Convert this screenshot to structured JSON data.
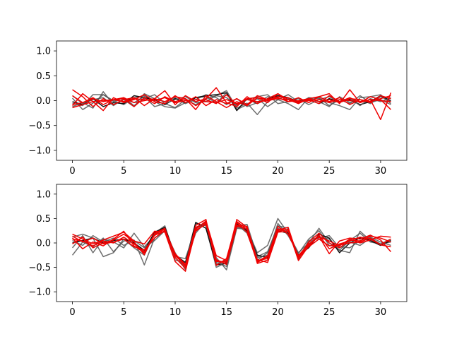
{
  "chart_data": [
    {
      "type": "line",
      "title": "",
      "xlabel": "",
      "ylabel": "",
      "xlim": [
        -1.55,
        32.55
      ],
      "ylim": [
        -1.2,
        1.2
      ],
      "xticks": [
        0,
        5,
        10,
        15,
        20,
        25,
        30
      ],
      "yticks": [
        -1.0,
        -0.5,
        0.0,
        0.5,
        1.0
      ],
      "ytick_labels": [
        "−1.0",
        "−0.5",
        "0.0",
        "0.5",
        "1.0"
      ],
      "grid": false,
      "series_colors": [
        "#555555",
        "#555555",
        "#555555",
        "#111111",
        "#555555",
        "#ee0000",
        "#ee0000",
        "#ee0000",
        "#ee0000",
        "#ee0000"
      ],
      "series": [
        {
          "values": [
            0.05,
            -0.18,
            -0.05,
            0.12,
            -0.02,
            0.06,
            -0.1,
            0.04,
            0.12,
            -0.06,
            -0.14,
            0.02,
            -0.08,
            0.04,
            0.1,
            0.2,
            -0.15,
            -0.05,
            -0.28,
            -0.02,
            0.1,
            0.04,
            -0.05,
            0.06,
            -0.02,
            -0.12,
            0.08,
            -0.04,
            0.02,
            -0.06,
            0.08,
            -0.02
          ]
        },
        {
          "values": [
            -0.05,
            -0.1,
            0.12,
            0.12,
            0.0,
            -0.08,
            0.06,
            0.1,
            -0.02,
            -0.12,
            -0.15,
            -0.04,
            0.06,
            0.08,
            -0.05,
            0.16,
            -0.18,
            -0.08,
            0.04,
            -0.12,
            0.02,
            0.12,
            -0.02,
            0.04,
            0.06,
            -0.1,
            0.02,
            -0.06,
            0.1,
            -0.04,
            0.02,
            -0.08
          ]
        },
        {
          "values": [
            -0.12,
            -0.04,
            -0.15,
            0.18,
            -0.08,
            0.02,
            -0.12,
            0.14,
            0.04,
            -0.02,
            0.06,
            -0.06,
            0.02,
            0.12,
            0.06,
            -0.08,
            0.04,
            -0.12,
            -0.04,
            0.08,
            0.02,
            -0.06,
            -0.18,
            0.06,
            0.04,
            -0.04,
            -0.1,
            -0.18,
            0.06,
            0.08,
            0.12,
            -0.06
          ]
        },
        {
          "values": [
            -0.02,
            -0.08,
            0.04,
            -0.12,
            -0.04,
            -0.06,
            0.1,
            0.06,
            0.02,
            -0.08,
            0.04,
            -0.04,
            0.06,
            0.1,
            0.12,
            0.16,
            -0.2,
            0.04,
            -0.06,
            0.04,
            0.1,
            0.06,
            -0.02,
            0.02,
            -0.06,
            0.04,
            -0.02,
            0.02,
            -0.08,
            -0.02,
            0.1,
            0.0
          ]
        },
        {
          "values": [
            0.1,
            -0.06,
            0.02,
            0.06,
            -0.1,
            0.04,
            -0.04,
            0.08,
            -0.12,
            -0.06,
            0.02,
            0.08,
            -0.04,
            -0.02,
            0.1,
            0.06,
            -0.1,
            0.02,
            0.08,
            0.12,
            -0.06,
            -0.02,
            0.04,
            -0.08,
            0.02,
            0.08,
            -0.04,
            0.06,
            -0.1,
            0.04,
            -0.02,
            0.06
          ]
        },
        {
          "values": [
            0.22,
            0.08,
            -0.12,
            0.04,
            -0.08,
            0.02,
            0.06,
            -0.1,
            0.04,
            0.2,
            -0.08,
            0.1,
            -0.02,
            0.04,
            0.26,
            -0.04,
            -0.12,
            0.08,
            -0.06,
            0.04,
            0.14,
            -0.02,
            0.06,
            -0.04,
            0.08,
            0.14,
            -0.06,
            0.22,
            -0.04,
            0.02,
            -0.38,
            0.16
          ]
        },
        {
          "values": [
            -0.1,
            0.14,
            -0.02,
            -0.2,
            0.06,
            -0.04,
            0.02,
            0.12,
            -0.02,
            -0.06,
            0.1,
            -0.04,
            0.08,
            -0.1,
            0.02,
            -0.06,
            0.04,
            -0.08,
            0.1,
            0.02,
            0.08,
            0.06,
            -0.04,
            0.02,
            -0.06,
            0.1,
            -0.02,
            0.06,
            -0.04,
            0.08,
            0.02,
            -0.18
          ]
        },
        {
          "values": [
            0.1,
            -0.04,
            0.06,
            -0.08,
            0.02,
            0.04,
            -0.12,
            0.06,
            -0.06,
            0.08,
            -0.02,
            0.04,
            -0.1,
            0.02,
            -0.06,
            0.12,
            -0.08,
            0.04,
            0.06,
            -0.04,
            0.14,
            0.02,
            -0.06,
            0.04,
            0.08,
            -0.02,
            0.06,
            -0.08,
            0.02,
            -0.04,
            0.1,
            0.04
          ]
        },
        {
          "values": [
            -0.14,
            -0.08,
            -0.02,
            0.0,
            0.02,
            0.06,
            -0.04,
            0.0,
            0.04,
            -0.02,
            0.08,
            0.04,
            -0.18,
            0.1,
            -0.02,
            -0.14,
            -0.02,
            -0.1,
            0.06,
            0.02,
            0.06,
            -0.02,
            0.0,
            0.04,
            -0.02,
            0.02,
            -0.04,
            0.04,
            0.02,
            -0.02,
            0.04,
            0.1
          ]
        },
        {
          "values": [
            -0.08,
            -0.04,
            0.04,
            -0.02,
            0.02,
            -0.02,
            0.04,
            0.02,
            0.0,
            0.06,
            -0.04,
            0.0,
            0.02,
            -0.02,
            -0.04,
            0.02,
            -0.06,
            0.02,
            -0.02,
            0.0,
            0.04,
            0.02,
            -0.02,
            0.0,
            0.02,
            -0.04,
            0.02,
            0.0,
            -0.02,
            0.02,
            0.0,
            -0.02
          ]
        }
      ]
    },
    {
      "type": "line",
      "title": "",
      "xlabel": "",
      "ylabel": "",
      "xlim": [
        -1.55,
        32.55
      ],
      "ylim": [
        -1.2,
        1.2
      ],
      "xticks": [
        0,
        5,
        10,
        15,
        20,
        25,
        30
      ],
      "yticks": [
        -1.0,
        -0.5,
        0.0,
        0.5,
        1.0
      ],
      "ytick_labels": [
        "−1.0",
        "−0.5",
        "0.0",
        "0.5",
        "1.0"
      ],
      "grid": false,
      "series_colors": [
        "#555555",
        "#555555",
        "#555555",
        "#111111",
        "#555555",
        "#ee0000",
        "#ee0000",
        "#ee0000",
        "#ee0000",
        "#ee0000"
      ],
      "series": [
        {
          "values": [
            -0.25,
            0.02,
            -0.08,
            0.1,
            -0.18,
            0.04,
            0.06,
            -0.45,
            0.1,
            0.25,
            -0.2,
            -0.55,
            0.3,
            0.4,
            -0.3,
            -0.55,
            0.3,
            0.28,
            -0.2,
            -0.05,
            0.5,
            0.2,
            -0.2,
            0.0,
            0.3,
            0.0,
            -0.15,
            -0.2,
            0.24,
            0.05,
            -0.05,
            0.05
          ]
        },
        {
          "values": [
            -0.1,
            0.15,
            -0.2,
            0.08,
            0.02,
            -0.1,
            0.2,
            -0.08,
            0.15,
            0.3,
            -0.35,
            -0.4,
            0.2,
            0.45,
            -0.42,
            -0.35,
            0.38,
            0.2,
            -0.35,
            -0.2,
            0.3,
            0.22,
            -0.3,
            0.02,
            0.1,
            0.15,
            -0.1,
            0.02,
            -0.05,
            0.1,
            -0.02,
            0.08
          ]
        },
        {
          "values": [
            0.12,
            0.18,
            0.1,
            -0.28,
            -0.2,
            0.08,
            -0.1,
            -0.25,
            0.2,
            0.35,
            -0.3,
            -0.5,
            0.4,
            0.35,
            -0.5,
            -0.4,
            0.35,
            0.38,
            -0.28,
            -0.18,
            0.35,
            0.3,
            -0.35,
            0.05,
            0.12,
            0.08,
            -0.15,
            0.05,
            0.2,
            0.02,
            -0.02,
            0.02
          ]
        },
        {
          "values": [
            0.0,
            0.05,
            0.1,
            0.0,
            0.05,
            0.08,
            0.0,
            -0.15,
            0.22,
            0.32,
            -0.25,
            -0.4,
            0.42,
            0.3,
            -0.45,
            -0.42,
            0.4,
            0.25,
            -0.25,
            -0.3,
            0.25,
            0.2,
            -0.25,
            -0.1,
            0.18,
            0.1,
            -0.2,
            0.0,
            0.1,
            0.05,
            -0.05,
            0.05
          ]
        },
        {
          "values": [
            0.05,
            -0.05,
            0.15,
            0.02,
            0.1,
            -0.05,
            0.05,
            -0.1,
            0.05,
            0.25,
            -0.28,
            -0.32,
            0.3,
            0.38,
            -0.4,
            -0.48,
            0.32,
            0.3,
            -0.3,
            -0.25,
            0.4,
            0.15,
            -0.22,
            0.08,
            0.25,
            -0.05,
            -0.08,
            -0.1,
            0.05,
            0.12,
            0.02,
            -0.05
          ]
        },
        {
          "values": [
            0.18,
            0.08,
            -0.02,
            0.06,
            0.14,
            0.22,
            0.04,
            -0.02,
            0.24,
            0.22,
            -0.38,
            -0.58,
            0.28,
            0.45,
            -0.26,
            -0.36,
            0.48,
            0.32,
            -0.42,
            -0.35,
            0.28,
            0.26,
            -0.36,
            -0.06,
            0.14,
            -0.22,
            0.04,
            0.1,
            0.08,
            0.16,
            0.06,
            -0.18
          ]
        },
        {
          "values": [
            0.1,
            -0.12,
            0.02,
            -0.06,
            0.08,
            0.24,
            -0.06,
            -0.2,
            0.18,
            0.28,
            -0.24,
            -0.48,
            0.36,
            0.48,
            -0.46,
            -0.32,
            0.44,
            0.28,
            -0.34,
            -0.4,
            0.22,
            0.24,
            -0.28,
            -0.04,
            0.16,
            -0.12,
            -0.02,
            0.04,
            0.12,
            0.08,
            -0.04,
            0.08
          ]
        },
        {
          "values": [
            -0.02,
            0.12,
            -0.1,
            0.0,
            0.06,
            0.18,
            0.02,
            -0.24,
            0.2,
            0.3,
            -0.3,
            -0.52,
            0.24,
            0.4,
            -0.36,
            -0.4,
            0.36,
            0.34,
            -0.36,
            -0.32,
            0.26,
            0.32,
            -0.32,
            0.02,
            0.2,
            0.0,
            -0.1,
            0.06,
            0.04,
            0.14,
            0.1,
            0.02
          ]
        },
        {
          "values": [
            0.14,
            0.02,
            0.1,
            -0.02,
            0.02,
            0.08,
            -0.08,
            -0.14,
            0.1,
            0.26,
            -0.22,
            -0.44,
            0.32,
            0.42,
            -0.38,
            -0.38,
            0.42,
            0.22,
            -0.4,
            -0.28,
            0.34,
            0.18,
            -0.26,
            -0.02,
            0.12,
            0.04,
            -0.06,
            0.08,
            0.0,
            0.06,
            0.14,
            0.12
          ]
        },
        {
          "values": [
            0.08,
            0.04,
            -0.06,
            0.04,
            0.0,
            0.12,
            -0.02,
            -0.18,
            0.16,
            0.24,
            -0.26,
            -0.46,
            0.26,
            0.38,
            -0.34,
            -0.44,
            0.34,
            0.3,
            -0.38,
            -0.26,
            0.24,
            0.28,
            -0.3,
            -0.08,
            0.08,
            -0.06,
            -0.04,
            0.0,
            0.02,
            0.1,
            -0.04,
            -0.08
          ]
        }
      ]
    }
  ]
}
